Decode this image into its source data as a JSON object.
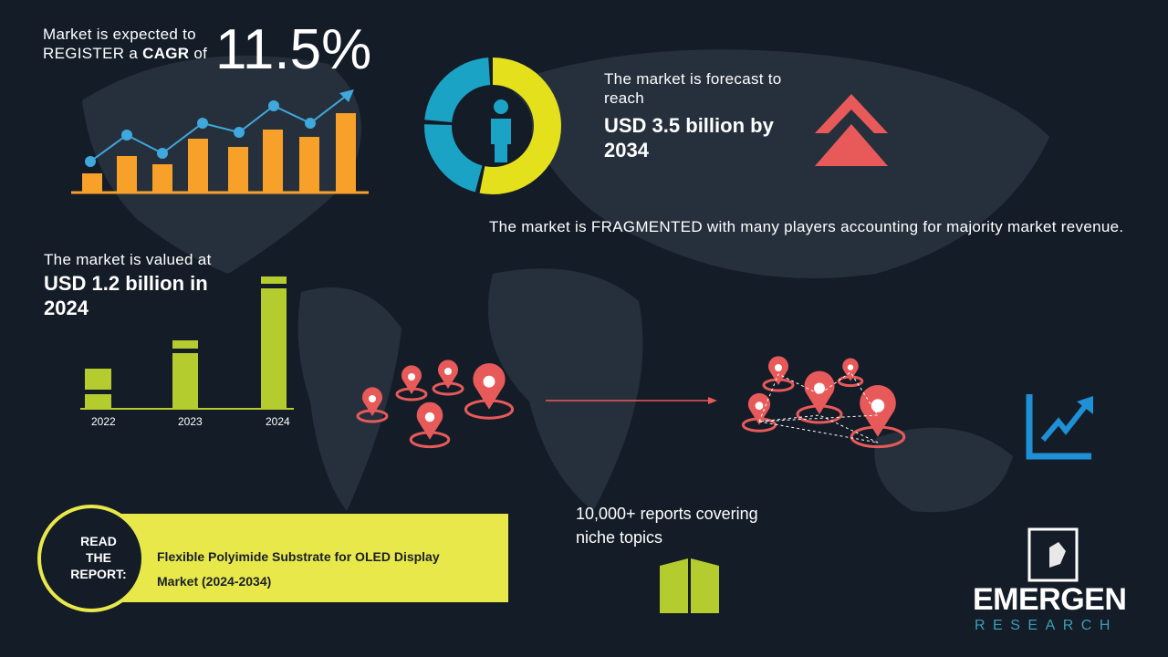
{
  "cagr": {
    "line1": "Market is expected to",
    "prefix": "REGISTER a",
    "keyword": "CAGR",
    "suffix": "of",
    "value": "11.5%"
  },
  "forecast": {
    "text": "The market is forecast to reach",
    "value": "USD 3.5 billion by 2034"
  },
  "fragmented": "The market is FRAGMENTED with many players accounting for majority market revenue.",
  "valued": {
    "text": "The market is valued at",
    "value": "USD 1.2 billion in 2024"
  },
  "years": [
    "2022",
    "2023",
    "2024"
  ],
  "read_report": {
    "label": [
      "READ",
      "THE",
      "REPORT:"
    ],
    "title": "Flexible Polyimide Substrate for OLED Display Market (2024-2034)"
  },
  "reports": "10,000+ reports covering niche topics",
  "logo": {
    "name": "EMERGEN",
    "sub": "RESEARCH"
  }
}
